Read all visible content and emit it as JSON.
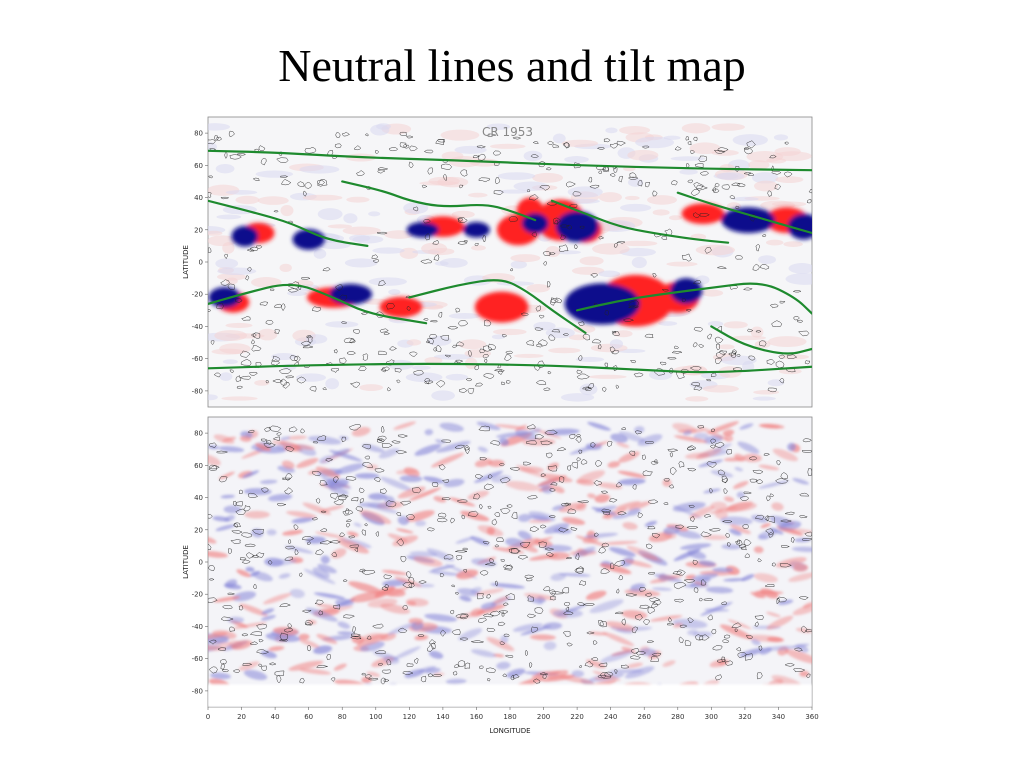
{
  "slide": {
    "title": "Neutral lines and tilt map"
  },
  "chart_data": [
    {
      "type": "heatmap",
      "panel": "top",
      "annotation": "CR 1953",
      "ylabel": "LATITUDE",
      "xlabel": "",
      "ylim": [
        -90,
        90
      ],
      "xlim": [
        0,
        360
      ],
      "yticks": [
        "80",
        "60",
        "40",
        "20",
        "0",
        "-20",
        "-40",
        "-60",
        "-80"
      ],
      "colors": {
        "positive": "#ff2020",
        "negative": "#0a0a8c",
        "neutral_line": "#1e8a2e",
        "contour": "#111111"
      },
      "neutral_lines": [
        {
          "points": [
            [
              0,
              69
            ],
            [
              40,
              68
            ],
            [
              90,
              65
            ],
            [
              150,
              63
            ],
            [
              220,
              60
            ],
            [
              290,
              58
            ],
            [
              360,
              57
            ]
          ]
        },
        {
          "points": [
            [
              0,
              -66
            ],
            [
              60,
              -64
            ],
            [
              130,
              -63
            ],
            [
              200,
              -64
            ],
            [
              260,
              -67
            ],
            [
              300,
              -69
            ],
            [
              360,
              -65
            ]
          ]
        },
        {
          "points": [
            [
              0,
              38
            ],
            [
              30,
              30
            ],
            [
              50,
              24
            ],
            [
              70,
              14
            ],
            [
              95,
              10
            ]
          ]
        },
        {
          "points": [
            [
              80,
              50
            ],
            [
              105,
              44
            ],
            [
              120,
              38
            ],
            [
              140,
              34
            ],
            [
              165,
              36
            ],
            [
              180,
              32
            ],
            [
              195,
              26
            ]
          ]
        },
        {
          "points": [
            [
              205,
              38
            ],
            [
              225,
              30
            ],
            [
              245,
              22
            ],
            [
              265,
              18
            ],
            [
              290,
              14
            ],
            [
              310,
              12
            ]
          ]
        },
        {
          "points": [
            [
              280,
              43
            ],
            [
              300,
              36
            ],
            [
              320,
              30
            ],
            [
              340,
              24
            ],
            [
              360,
              18
            ]
          ]
        },
        {
          "points": [
            [
              0,
              -26
            ],
            [
              20,
              -20
            ],
            [
              50,
              -12
            ],
            [
              75,
              -22
            ],
            [
              95,
              -32
            ],
            [
              130,
              -38
            ]
          ]
        },
        {
          "points": [
            [
              120,
              -22
            ],
            [
              150,
              -14
            ],
            [
              175,
              -10
            ],
            [
              190,
              -18
            ],
            [
              205,
              -30
            ],
            [
              225,
              -44
            ]
          ]
        },
        {
          "points": [
            [
              220,
              -30
            ],
            [
              245,
              -24
            ],
            [
              270,
              -20
            ],
            [
              300,
              -16
            ],
            [
              330,
              -12
            ],
            [
              350,
              -22
            ],
            [
              360,
              -32
            ]
          ]
        },
        {
          "points": [
            [
              300,
              -40
            ],
            [
              320,
              -52
            ],
            [
              345,
              -58
            ],
            [
              360,
              -54
            ]
          ]
        }
      ],
      "positive_patches": [
        {
          "lon": 15,
          "lat": -25,
          "rlon": 6,
          "rlat": 4
        },
        {
          "lon": 75,
          "lat": -22,
          "rlon": 10,
          "rlat": 4
        },
        {
          "lon": 115,
          "lat": -28,
          "rlon": 8,
          "rlat": 4
        },
        {
          "lon": 175,
          "lat": -28,
          "rlon": 10,
          "rlat": 6
        },
        {
          "lon": 255,
          "lat": -24,
          "rlon": 14,
          "rlat": 10
        },
        {
          "lon": 280,
          "lat": -22,
          "rlon": 8,
          "rlat": 6
        },
        {
          "lon": 185,
          "lat": 20,
          "rlon": 8,
          "rlat": 6
        },
        {
          "lon": 192,
          "lat": 32,
          "rlon": 5,
          "rlat": 5
        },
        {
          "lon": 210,
          "lat": 26,
          "rlon": 9,
          "rlat": 8
        },
        {
          "lon": 225,
          "lat": 20,
          "rlon": 6,
          "rlat": 5
        },
        {
          "lon": 295,
          "lat": 30,
          "rlon": 8,
          "rlat": 4
        },
        {
          "lon": 345,
          "lat": 26,
          "rlon": 8,
          "rlat": 5
        },
        {
          "lon": 140,
          "lat": 22,
          "rlon": 8,
          "rlat": 4
        },
        {
          "lon": 30,
          "lat": 18,
          "rlon": 6,
          "rlat": 4
        }
      ],
      "negative_patches": [
        {
          "lon": 10,
          "lat": -22,
          "rlon": 6,
          "rlat": 4
        },
        {
          "lon": 85,
          "lat": -20,
          "rlon": 8,
          "rlat": 4
        },
        {
          "lon": 235,
          "lat": -26,
          "rlon": 14,
          "rlat": 8
        },
        {
          "lon": 285,
          "lat": -18,
          "rlon": 6,
          "rlat": 5
        },
        {
          "lon": 22,
          "lat": 16,
          "rlon": 5,
          "rlat": 4
        },
        {
          "lon": 60,
          "lat": 14,
          "rlon": 6,
          "rlat": 4
        },
        {
          "lon": 128,
          "lat": 20,
          "rlon": 6,
          "rlat": 3
        },
        {
          "lon": 160,
          "lat": 20,
          "rlon": 5,
          "rlat": 3
        },
        {
          "lon": 195,
          "lat": 24,
          "rlon": 5,
          "rlat": 4
        },
        {
          "lon": 220,
          "lat": 22,
          "rlon": 8,
          "rlat": 6
        },
        {
          "lon": 322,
          "lat": 26,
          "rlon": 10,
          "rlat": 5
        },
        {
          "lon": 355,
          "lat": 22,
          "rlon": 6,
          "rlat": 5
        }
      ]
    },
    {
      "type": "heatmap",
      "panel": "bottom",
      "ylabel": "LATITUDE",
      "xlabel": "LONGITUDE",
      "ylim": [
        -90,
        90
      ],
      "xlim": [
        0,
        360
      ],
      "yticks": [
        "80",
        "60",
        "40",
        "20",
        "0",
        "-20",
        "-40",
        "-60",
        "-80"
      ],
      "xticks": [
        "0",
        "20",
        "40",
        "60",
        "80",
        "100",
        "120",
        "140",
        "160",
        "180",
        "200",
        "220",
        "240",
        "260",
        "280",
        "300",
        "320",
        "340",
        "360"
      ],
      "colors": {
        "positive": "#f08080",
        "negative": "#8888d8",
        "contour": "#111111"
      }
    }
  ]
}
